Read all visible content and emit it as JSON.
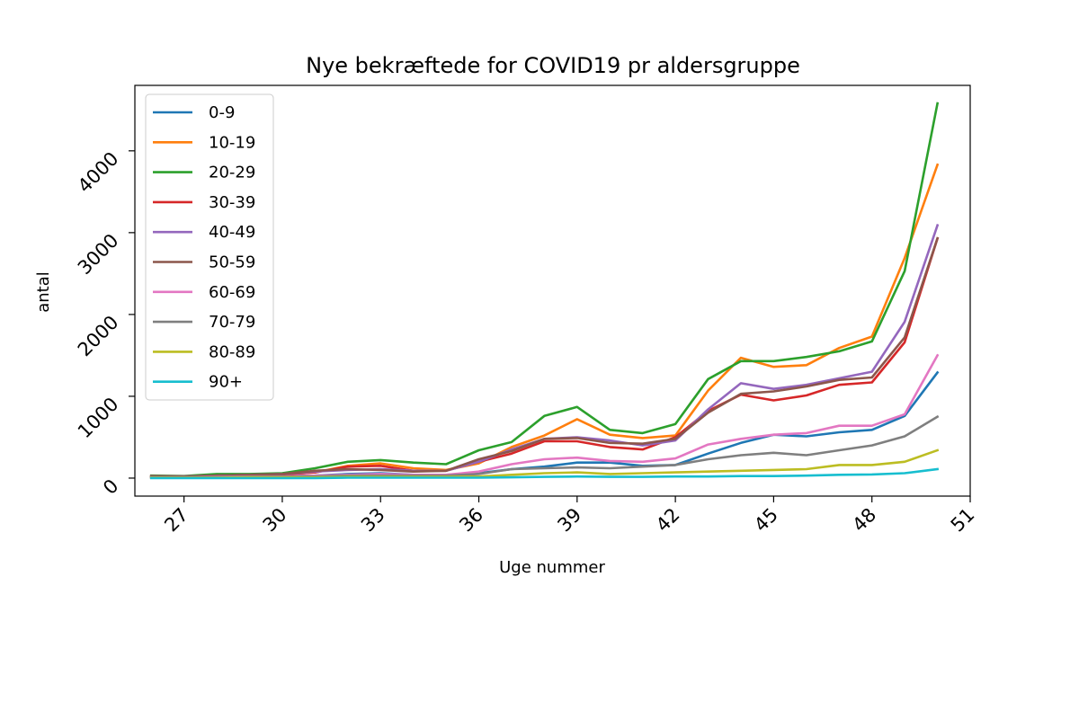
{
  "chart_data": {
    "type": "line",
    "title": "Nye bekræftede for COVID19 pr aldersgruppe",
    "xlabel": "Uge nummer",
    "ylabel": "antal",
    "xlim": [
      25.5,
      51
    ],
    "ylim": [
      -220,
      4800
    ],
    "xticks": [
      27,
      30,
      33,
      36,
      39,
      42,
      45,
      48,
      51
    ],
    "yticks": [
      0,
      1000,
      2000,
      3000,
      4000
    ],
    "grid": false,
    "legend": "top-left",
    "x": [
      26,
      27,
      28,
      29,
      30,
      31,
      32,
      33,
      34,
      35,
      36,
      37,
      38,
      39,
      40,
      41,
      42,
      43,
      44,
      45,
      46,
      47,
      48,
      49,
      50
    ],
    "series": [
      {
        "name": "0-9",
        "color": "#1f77b4",
        "values": [
          10,
          10,
          15,
          20,
          25,
          30,
          50,
          60,
          40,
          40,
          60,
          110,
          140,
          190,
          190,
          150,
          160,
          300,
          430,
          530,
          510,
          560,
          590,
          760,
          1290
        ]
      },
      {
        "name": "10-19",
        "color": "#ff7f0e",
        "values": [
          20,
          20,
          30,
          40,
          45,
          70,
          150,
          180,
          120,
          100,
          180,
          380,
          520,
          720,
          530,
          490,
          520,
          1070,
          1470,
          1360,
          1380,
          1590,
          1730,
          2690,
          3830
        ]
      },
      {
        "name": "20-29",
        "color": "#2ca02c",
        "values": [
          30,
          25,
          50,
          50,
          60,
          120,
          200,
          220,
          190,
          170,
          340,
          440,
          760,
          870,
          590,
          550,
          660,
          1210,
          1430,
          1430,
          1480,
          1550,
          1670,
          2530,
          4580
        ]
      },
      {
        "name": "30-39",
        "color": "#d62728",
        "values": [
          20,
          20,
          30,
          40,
          45,
          70,
          140,
          150,
          90,
          90,
          200,
          300,
          450,
          450,
          380,
          350,
          500,
          820,
          1020,
          950,
          1010,
          1140,
          1170,
          1660,
          2930
        ]
      },
      {
        "name": "40-49",
        "color": "#9467bd",
        "values": [
          20,
          20,
          30,
          40,
          50,
          80,
          100,
          110,
          90,
          90,
          200,
          350,
          480,
          500,
          460,
          400,
          460,
          840,
          1160,
          1090,
          1140,
          1220,
          1300,
          1910,
          3090
        ]
      },
      {
        "name": "50-59",
        "color": "#8c564b",
        "values": [
          25,
          20,
          30,
          40,
          50,
          90,
          110,
          100,
          80,
          90,
          230,
          330,
          480,
          490,
          430,
          420,
          480,
          800,
          1030,
          1060,
          1120,
          1200,
          1230,
          1720,
          2930
        ]
      },
      {
        "name": "60-69",
        "color": "#e377c2",
        "values": [
          10,
          10,
          15,
          20,
          20,
          30,
          40,
          50,
          40,
          40,
          80,
          170,
          230,
          250,
          210,
          200,
          240,
          410,
          480,
          530,
          550,
          640,
          640,
          780,
          1500
        ]
      },
      {
        "name": "70-79",
        "color": "#7f7f7f",
        "values": [
          10,
          10,
          10,
          15,
          15,
          20,
          30,
          30,
          30,
          30,
          50,
          110,
          120,
          130,
          120,
          140,
          160,
          230,
          280,
          310,
          280,
          340,
          400,
          510,
          750
        ]
      },
      {
        "name": "80-89",
        "color": "#bcbd22",
        "values": [
          5,
          5,
          5,
          10,
          10,
          10,
          15,
          15,
          15,
          15,
          20,
          40,
          60,
          70,
          50,
          60,
          70,
          80,
          90,
          100,
          110,
          160,
          160,
          200,
          340
        ]
      },
      {
        "name": "90+",
        "color": "#17becf",
        "values": [
          0,
          0,
          0,
          0,
          0,
          0,
          5,
          5,
          5,
          5,
          5,
          10,
          15,
          20,
          15,
          15,
          20,
          20,
          25,
          25,
          30,
          40,
          45,
          60,
          110
        ]
      }
    ]
  }
}
